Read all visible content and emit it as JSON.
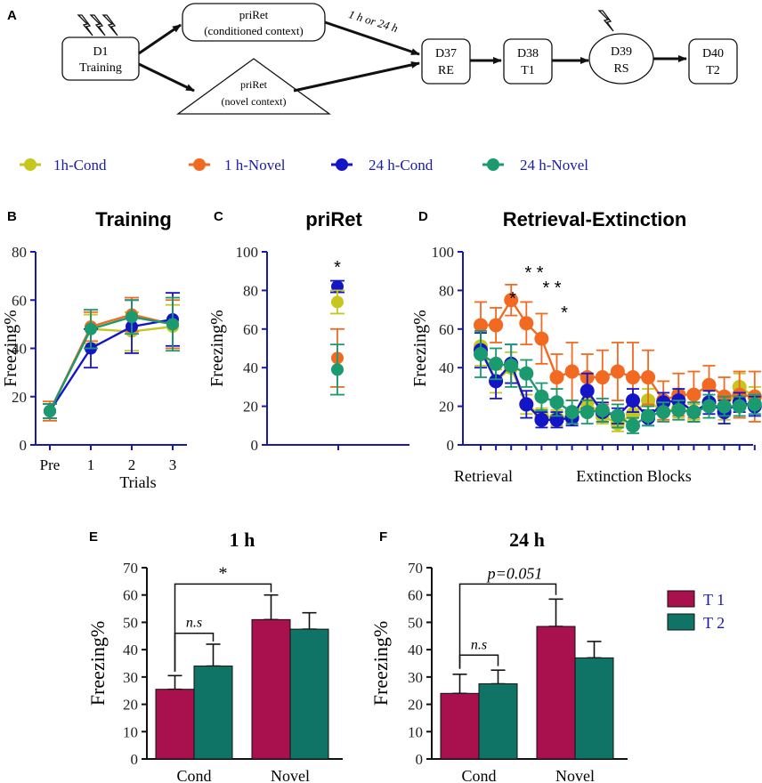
{
  "panel_letters": {
    "A": "A",
    "B": "B",
    "C": "C",
    "D": "D",
    "E": "E",
    "F": "F"
  },
  "colors": {
    "cond1h": "#c6c61e",
    "novel1h": "#f26a21",
    "cond24h": "#1515c8",
    "novel24h": "#1a9a6e",
    "t1": "#a8104e",
    "t2": "#0f7366",
    "axis_blue": "#1a1aa8"
  },
  "diagram": {
    "d1_line1": "D1",
    "d1_line2": "Training",
    "priret_cond_line1": "priRet",
    "priret_cond_line2": "(conditioned context)",
    "priret_novel_line1": "priRet",
    "priret_novel_line2": "(novel context)",
    "interval_label": "1 h or 24 h",
    "d37_line1": "D37",
    "d37_line2": "RE",
    "d38_line1": "D38",
    "d38_line2": "T1",
    "d39_line1": "D39",
    "d39_line2": "RS",
    "d40_line1": "D40",
    "d40_line2": "T2"
  },
  "legend_top": [
    {
      "key": "cond1h",
      "label": "1h-Cond"
    },
    {
      "key": "novel1h",
      "label": "1 h-Novel"
    },
    {
      "key": "cond24h",
      "label": "24 h-Cond"
    },
    {
      "key": "novel24h",
      "label": "24 h-Novel"
    }
  ],
  "legend_bar": [
    {
      "key": "t1",
      "label": "T 1"
    },
    {
      "key": "t2",
      "label": "T 2"
    }
  ],
  "chart_data": [
    {
      "id": "B",
      "type": "line",
      "title": "Training",
      "xlabel": "Trials",
      "ylabel": "Freezing%",
      "categories": [
        "Pre",
        "1",
        "2",
        "3"
      ],
      "ylim": [
        0,
        80
      ],
      "yticks": [
        0,
        20,
        40,
        60,
        80
      ],
      "series": [
        {
          "name": "1h-Cond",
          "values": [
            14,
            48,
            47,
            49
          ],
          "err": [
            3,
            6,
            8,
            9
          ]
        },
        {
          "name": "1 h-Novel",
          "values": [
            14,
            49,
            54,
            50
          ],
          "err": [
            4,
            6,
            7,
            10
          ]
        },
        {
          "name": "24 h-Cond",
          "values": [
            14,
            40,
            49,
            52
          ],
          "err": [
            3,
            8,
            11,
            11
          ]
        },
        {
          "name": "24 h-Novel",
          "values": [
            14,
            48,
            53,
            50
          ],
          "err": [
            3,
            8,
            7,
            11
          ]
        }
      ]
    },
    {
      "id": "C",
      "type": "scatter",
      "title": "priRet",
      "ylabel": "Freezing%",
      "ylim": [
        0,
        100
      ],
      "yticks": [
        0,
        20,
        40,
        60,
        80,
        100
      ],
      "annotations": [
        "*"
      ],
      "series": [
        {
          "name": "24 h-Cond",
          "value": 82,
          "err": 3
        },
        {
          "name": "1h-Cond",
          "value": 74,
          "err": 6
        },
        {
          "name": "1 h-Novel",
          "value": 45,
          "err": 15
        },
        {
          "name": "24 h-Novel",
          "value": 39,
          "err": 13
        }
      ]
    },
    {
      "id": "D",
      "type": "line",
      "title": "Retrieval-Extinction",
      "ylabel": "Freezing%",
      "ylim": [
        0,
        100
      ],
      "yticks": [
        0,
        20,
        40,
        60,
        80,
        100
      ],
      "xlabel_left": "Retrieval",
      "xlabel_right": "Extinction Blocks",
      "annotations": [
        "*",
        "* *",
        "* *",
        "*"
      ],
      "series": [
        {
          "name": "1h-Cond",
          "values": [
            51,
            33,
            40,
            21,
            15,
            14,
            15,
            22,
            15,
            11,
            16,
            23,
            17,
            19,
            17,
            22,
            18,
            30,
            25
          ],
          "err": [
            10,
            6,
            8,
            5,
            4,
            4,
            4,
            6,
            4,
            4,
            4,
            6,
            4,
            5,
            4,
            6,
            5,
            7,
            5
          ]
        },
        {
          "name": "1 h-Novel",
          "values": [
            62,
            62,
            75,
            63,
            55,
            35,
            38,
            35,
            35,
            38,
            35,
            35,
            23,
            26,
            26,
            31,
            25,
            26,
            25
          ],
          "err": [
            12,
            9,
            8,
            11,
            13,
            12,
            15,
            12,
            14,
            15,
            18,
            14,
            10,
            11,
            12,
            10,
            10,
            12,
            13
          ]
        },
        {
          "name": "24 h-Cond",
          "values": [
            49,
            33,
            42,
            21,
            13,
            13,
            14,
            28,
            17,
            15,
            23,
            14,
            22,
            23,
            17,
            22,
            17,
            22,
            20
          ],
          "err": [
            9,
            9,
            10,
            7,
            4,
            4,
            4,
            9,
            5,
            4,
            6,
            4,
            5,
            6,
            5,
            6,
            6,
            5,
            5
          ]
        },
        {
          "name": "24 h-Novel",
          "values": [
            47,
            42,
            41,
            37,
            25,
            22,
            17,
            17,
            18,
            15,
            10,
            15,
            17,
            18,
            17,
            20,
            20,
            20,
            21
          ],
          "err": [
            12,
            8,
            11,
            7,
            7,
            7,
            6,
            6,
            6,
            6,
            4,
            5,
            5,
            5,
            5,
            6,
            5,
            5,
            5
          ]
        }
      ]
    },
    {
      "id": "E",
      "type": "bar",
      "title": "1 h",
      "ylabel": "Freezing%",
      "categories": [
        "Cond",
        "Novel"
      ],
      "ylim": [
        0,
        70
      ],
      "yticks": [
        0,
        10,
        20,
        30,
        40,
        50,
        60,
        70
      ],
      "annotations": [
        "*",
        "n.s"
      ],
      "series": [
        {
          "name": "T 1",
          "values": [
            25.5,
            51
          ],
          "err": [
            5,
            9
          ]
        },
        {
          "name": "T 2",
          "values": [
            34,
            47.5
          ],
          "err": [
            8,
            6
          ]
        }
      ]
    },
    {
      "id": "F",
      "type": "bar",
      "title": "24 h",
      "ylabel": "Freezing%",
      "categories": [
        "Cond",
        "Novel"
      ],
      "ylim": [
        0,
        70
      ],
      "yticks": [
        0,
        10,
        20,
        30,
        40,
        50,
        60,
        70
      ],
      "annotations": [
        "p=0.051",
        "n.s"
      ],
      "series": [
        {
          "name": "T 1",
          "values": [
            24,
            48.5
          ],
          "err": [
            7,
            10
          ]
        },
        {
          "name": "T 2",
          "values": [
            27.5,
            37
          ],
          "err": [
            5,
            6
          ]
        }
      ]
    }
  ]
}
